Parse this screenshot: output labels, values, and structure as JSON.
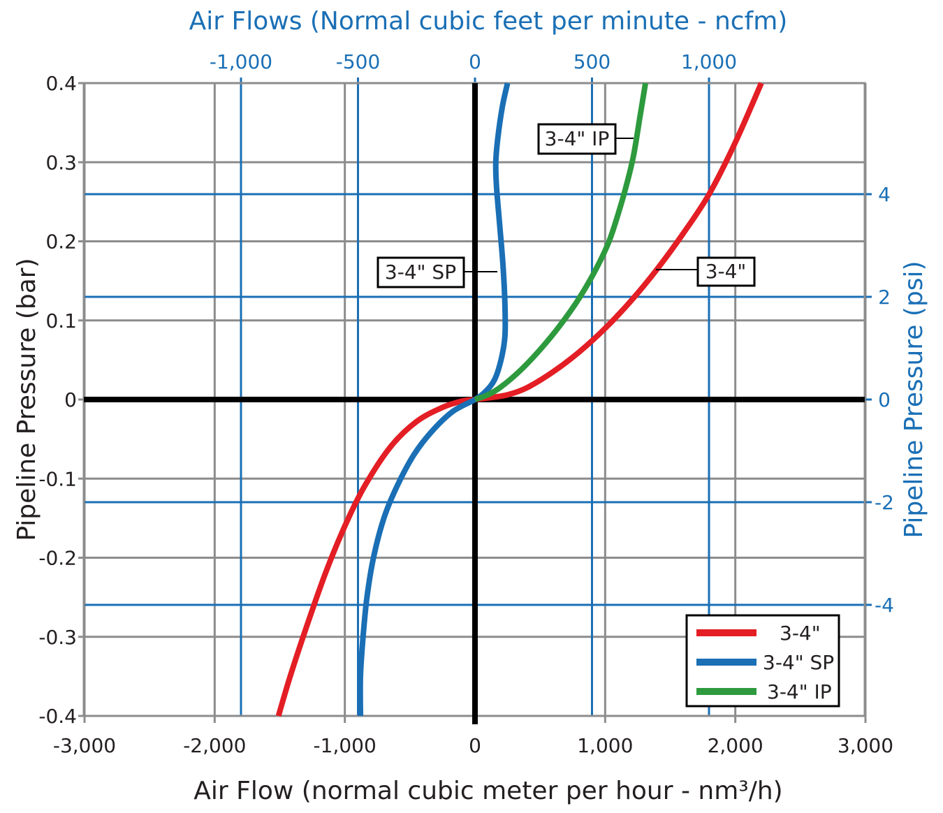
{
  "chart_data": {
    "type": "line",
    "title": "Air Flows (Normal cubic feet per minute - ncfm)",
    "xlabel": "Air Flow (normal cubic meter per hour - nm³/h)",
    "ylabel": "Pipeline Pressure (bar)",
    "y2label": "Pipeline Pressure (psi)",
    "xlim": [
      -3000,
      3000
    ],
    "ylim": [
      -0.4,
      0.4
    ],
    "x2lim": [
      -1765,
      1765
    ],
    "y2lim": [
      -5.8,
      5.8
    ],
    "grid": true,
    "x_ticks": [
      "-3,000",
      "-2,000",
      "-1,000",
      "0",
      "1,000",
      "2,000",
      "3,000"
    ],
    "x_tick_values": [
      -3000,
      -2000,
      -1000,
      0,
      1000,
      2000,
      3000
    ],
    "y_ticks": [
      "0.4",
      "0.3",
      "0.2",
      "0.1",
      "0",
      "-0.1",
      "-0.2",
      "-0.3",
      "-0.4"
    ],
    "y_tick_values": [
      0.4,
      0.3,
      0.2,
      0.1,
      0,
      -0.1,
      -0.2,
      -0.3,
      -0.4
    ],
    "x2_ticks": [
      "-1,000",
      "-500",
      "0",
      "500",
      "1,000"
    ],
    "x2_tick_values": [
      -1000,
      -500,
      0,
      500,
      1000
    ],
    "y2_ticks": [
      "4",
      "2",
      "0",
      "-2",
      "-4"
    ],
    "y2_tick_values": [
      4,
      2,
      0,
      -2,
      -4
    ],
    "legend_position": "bottom-right",
    "series": [
      {
        "name": "3-4\"",
        "color": "#e31e24",
        "callout": "3-4\"",
        "x": [
          -1510,
          -1420,
          -1300,
          -1150,
          -1000,
          -850,
          -650,
          -450,
          -250,
          -100,
          0,
          100,
          250,
          400,
          600,
          800,
          1000,
          1200,
          1400,
          1600,
          1800,
          2000,
          2200
        ],
        "y": [
          -0.4,
          -0.35,
          -0.29,
          -0.22,
          -0.16,
          -0.11,
          -0.06,
          -0.028,
          -0.01,
          -0.002,
          0,
          0.002,
          0.006,
          0.015,
          0.035,
          0.06,
          0.09,
          0.125,
          0.165,
          0.21,
          0.26,
          0.325,
          0.4
        ]
      },
      {
        "name": "3-4\" SP",
        "color": "#1a6fb5",
        "callout": "3-4\" SP",
        "x": [
          -880,
          -880,
          -860,
          -830,
          -780,
          -700,
          -600,
          -470,
          -330,
          -170,
          0,
          80,
          150,
          200,
          230,
          230,
          215,
          190,
          165,
          160,
          175,
          210,
          250
        ],
        "y": [
          -0.4,
          -0.35,
          -0.3,
          -0.25,
          -0.2,
          -0.15,
          -0.11,
          -0.07,
          -0.04,
          -0.015,
          0,
          0.01,
          0.025,
          0.05,
          0.08,
          0.12,
          0.17,
          0.22,
          0.27,
          0.3,
          0.33,
          0.37,
          0.4
        ]
      },
      {
        "name": "3-4\" IP",
        "color": "#2e9a3e",
        "callout": "3-4\" IP",
        "x": [
          0,
          100,
          200,
          350,
          500,
          650,
          800,
          930,
          1030,
          1110,
          1170,
          1220,
          1270,
          1310
        ],
        "y": [
          0,
          0.006,
          0.016,
          0.037,
          0.063,
          0.093,
          0.128,
          0.165,
          0.2,
          0.24,
          0.275,
          0.31,
          0.36,
          0.4
        ]
      }
    ]
  }
}
